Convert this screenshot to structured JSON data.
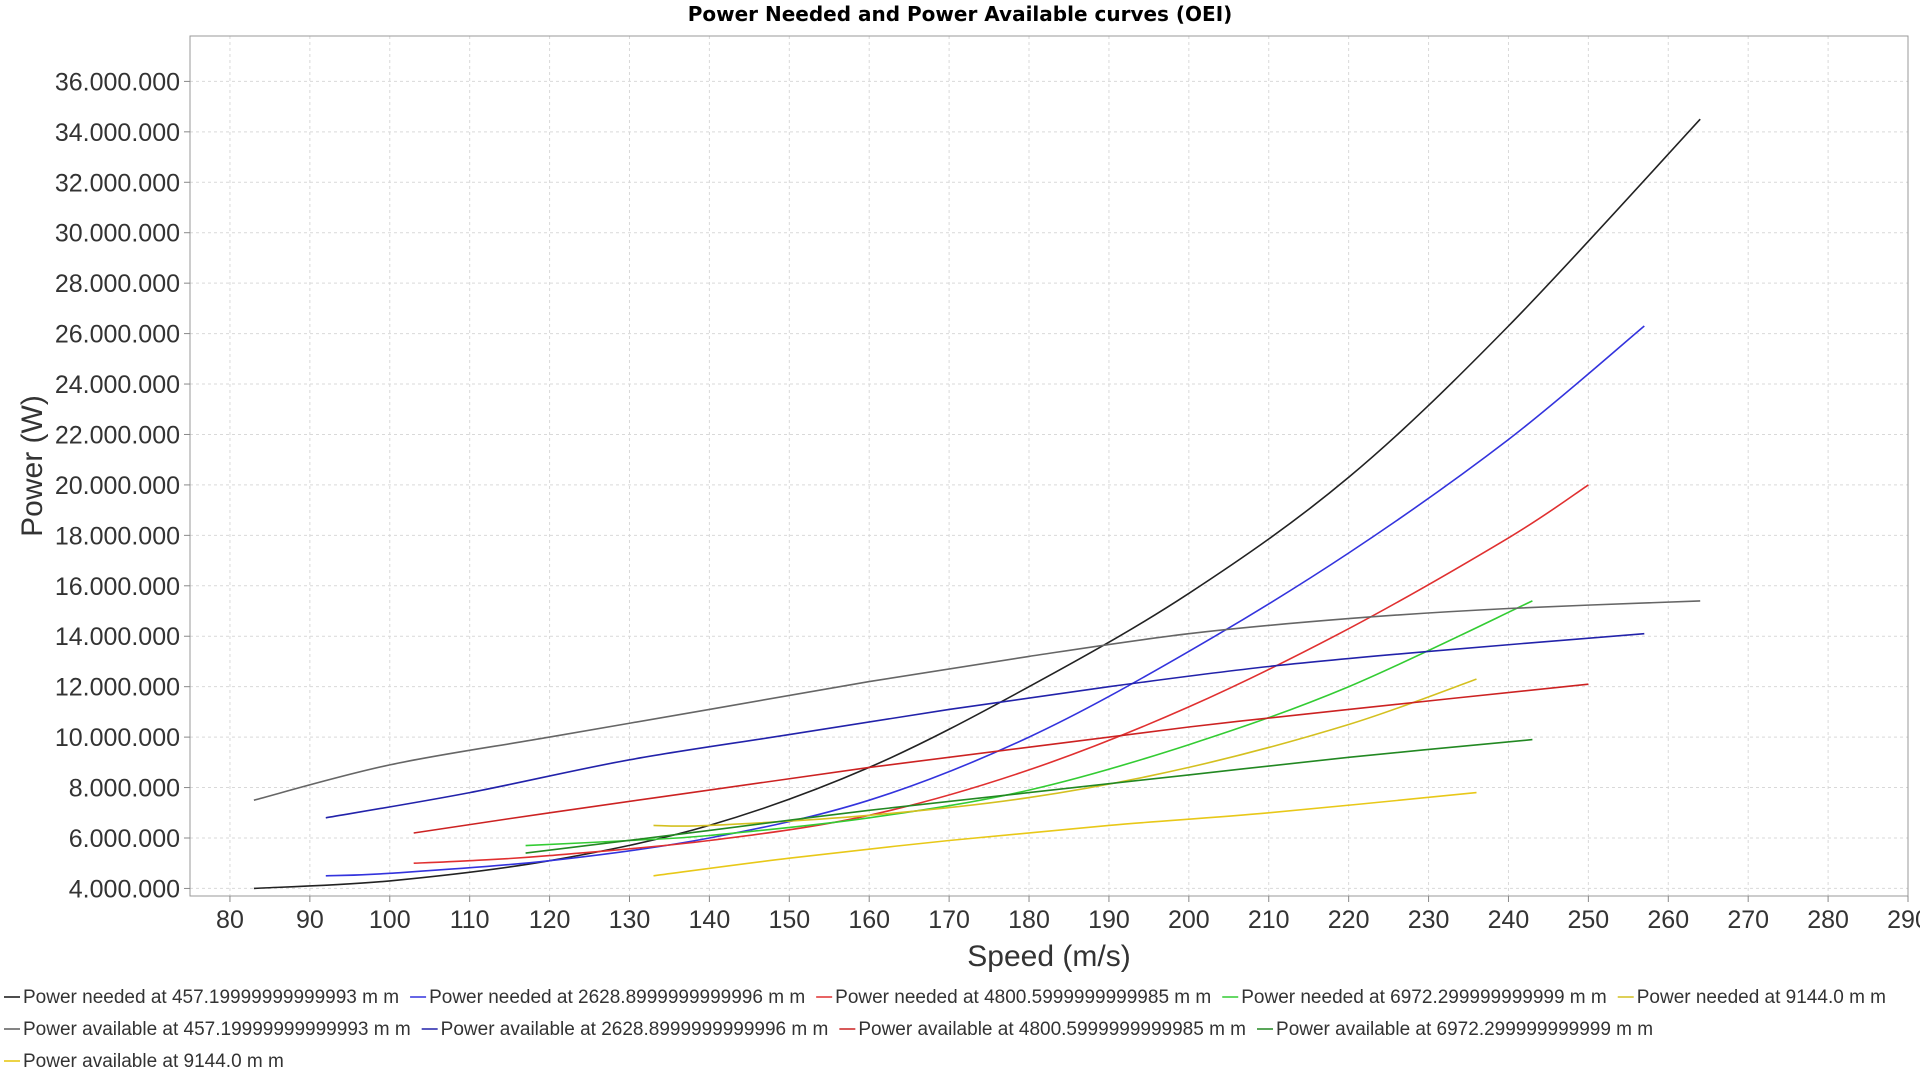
{
  "chart_data": {
    "type": "line",
    "title": "Power Needed and Power Available curves (OEI)",
    "xlabel": "Speed (m/s)",
    "ylabel": "Power (W)",
    "xlim": [
      75,
      290
    ],
    "ylim": [
      3700000,
      37800000
    ],
    "x_ticks": [
      80,
      90,
      100,
      110,
      120,
      130,
      140,
      150,
      160,
      170,
      180,
      190,
      200,
      210,
      220,
      230,
      240,
      250,
      260,
      270,
      280,
      290
    ],
    "x_tick_labels": [
      "80",
      "90",
      "100",
      "110",
      "120",
      "130",
      "140",
      "150",
      "160",
      "170",
      "180",
      "190",
      "200",
      "210",
      "220",
      "230",
      "240",
      "250",
      "260",
      "270",
      "280",
      "290"
    ],
    "y_ticks": [
      4000000,
      6000000,
      8000000,
      10000000,
      12000000,
      14000000,
      16000000,
      18000000,
      20000000,
      22000000,
      24000000,
      26000000,
      28000000,
      30000000,
      32000000,
      34000000,
      36000000
    ],
    "y_tick_labels": [
      "4.000.000",
      "6.000.000",
      "8.000.000",
      "10.000.000",
      "12.000.000",
      "14.000.000",
      "16.000.000",
      "18.000.000",
      "20.000.000",
      "22.000.000",
      "24.000.000",
      "26.000.000",
      "28.000.000",
      "30.000.000",
      "32.000.000",
      "34.000.000",
      "36.000.000"
    ],
    "grid": true,
    "legend_position": "bottom",
    "series": [
      {
        "name": "Power needed at 457.19999999999993 m m",
        "color": "#222222",
        "x": [
          83,
          100,
          120,
          140,
          160,
          180,
          200,
          220,
          240,
          264
        ],
        "y": [
          4000000,
          4300000,
          5100000,
          6500000,
          8800000,
          12000000,
          15700000,
          20300000,
          26300000,
          34500000
        ]
      },
      {
        "name": "Power needed at 2628.8999999999996 m m",
        "color": "#3333dd",
        "x": [
          92,
          100,
          120,
          140,
          160,
          180,
          200,
          220,
          240,
          257
        ],
        "y": [
          4500000,
          4600000,
          5100000,
          6000000,
          7500000,
          10000000,
          13400000,
          17300000,
          21800000,
          26300000
        ]
      },
      {
        "name": "Power needed at 4800.5999999999985 m m",
        "color": "#e03030",
        "x": [
          103,
          110,
          120,
          140,
          160,
          180,
          200,
          220,
          240,
          250
        ],
        "y": [
          5000000,
          5100000,
          5300000,
          5900000,
          6900000,
          8700000,
          11200000,
          14300000,
          17900000,
          20000000
        ]
      },
      {
        "name": "Power needed at 6972.299999999999 m m",
        "color": "#33cc33",
        "x": [
          117,
          130,
          140,
          160,
          180,
          200,
          220,
          243
        ],
        "y": [
          5700000,
          5900000,
          6100000,
          6800000,
          7900000,
          9700000,
          12000000,
          15400000
        ]
      },
      {
        "name": "Power needed at 9144.0 m m",
        "color": "#d4c020",
        "x": [
          133,
          140,
          160,
          180,
          200,
          220,
          236
        ],
        "y": [
          6500000,
          6500000,
          6900000,
          7600000,
          8800000,
          10500000,
          12300000
        ]
      },
      {
        "name": "Power available at 457.19999999999993 m m",
        "color": "#666666",
        "x": [
          83,
          100,
          120,
          140,
          160,
          180,
          200,
          220,
          240,
          264
        ],
        "y": [
          7500000,
          8900000,
          10000000,
          11100000,
          12200000,
          13200000,
          14100000,
          14700000,
          15100000,
          15400000
        ]
      },
      {
        "name": "Power available at 2628.8999999999996 m m",
        "color": "#2222aa",
        "x": [
          92,
          110,
          130,
          150,
          170,
          190,
          210,
          230,
          257
        ],
        "y": [
          6800000,
          7800000,
          9100000,
          10100000,
          11100000,
          12000000,
          12800000,
          13400000,
          14100000
        ]
      },
      {
        "name": "Power available at 4800.5999999999985 m m",
        "color": "#cc2222",
        "x": [
          103,
          120,
          140,
          160,
          180,
          200,
          220,
          250
        ],
        "y": [
          6200000,
          7000000,
          7900000,
          8800000,
          9600000,
          10400000,
          11100000,
          12100000
        ]
      },
      {
        "name": "Power available at 6972.299999999999 m m",
        "color": "#228822",
        "x": [
          117,
          140,
          160,
          180,
          200,
          220,
          243
        ],
        "y": [
          5400000,
          6300000,
          7100000,
          7800000,
          8500000,
          9200000,
          9900000
        ]
      },
      {
        "name": "Power available at 9144.0 m m",
        "color": "#e8c818",
        "x": [
          133,
          150,
          170,
          190,
          210,
          236
        ],
        "y": [
          4500000,
          5200000,
          5900000,
          6500000,
          7000000,
          7800000
        ]
      }
    ]
  }
}
